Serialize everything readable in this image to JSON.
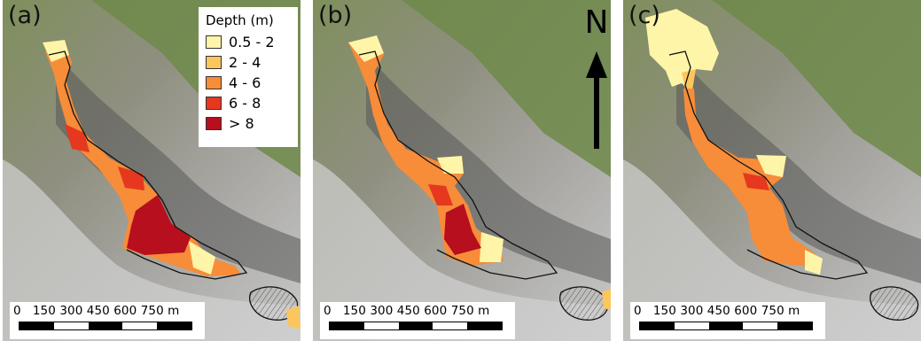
{
  "panels": [
    {
      "label": "(a)"
    },
    {
      "label": "(b)"
    },
    {
      "label": "(c)"
    }
  ],
  "legend": {
    "title": "Depth (m)",
    "classes": [
      {
        "label": "0.5 - 2",
        "color": "#fff5a8"
      },
      {
        "label": "2 - 4",
        "color": "#fcc65e"
      },
      {
        "label": "4 - 6",
        "color": "#f78c39"
      },
      {
        "label": "6 - 8",
        "color": "#e5381e"
      },
      {
        "label": "> 8",
        "color": "#b70f1e"
      }
    ]
  },
  "north_arrow": {
    "label": "N"
  },
  "scale_bar": {
    "label": "0   150 300 450 600 750 m"
  }
}
